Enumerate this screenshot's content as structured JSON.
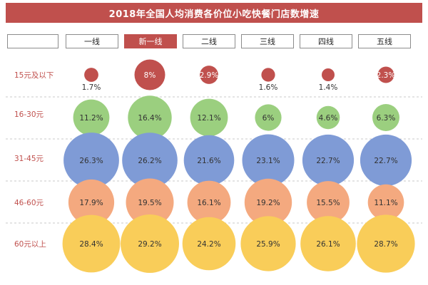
{
  "title": "2018年全国人均消费各价位小吃快餐门店数增速",
  "chart_data": {
    "type": "bubble",
    "columns": [
      "一线",
      "新一线",
      "二线",
      "三线",
      "四线",
      "五线"
    ],
    "active_column": "新一线",
    "rows": [
      "15元及以下",
      "16-30元",
      "31-45元",
      "46-60元",
      "60元以上"
    ],
    "row_colors": [
      "#c0504d",
      "#9bcf7f",
      "#7f9bd6",
      "#f4a97f",
      "#f9cd59"
    ],
    "values": [
      [
        1.7,
        8,
        2.9,
        1.6,
        1.4,
        2.3
      ],
      [
        11.2,
        16.4,
        12.1,
        6,
        4.6,
        6.3
      ],
      [
        26.3,
        26.2,
        21.6,
        23.1,
        22.7,
        22.7
      ],
      [
        17.9,
        19.5,
        16.1,
        19.2,
        15.5,
        11.1
      ],
      [
        28.4,
        29.2,
        24.2,
        25.9,
        26.1,
        28.7
      ]
    ],
    "labels": [
      [
        "1.7%",
        "8%",
        "2.9%",
        "1.6%",
        "1.4%",
        "2.3%"
      ],
      [
        "11.2%",
        "16.4%",
        "12.1%",
        "6%",
        "4.6%",
        "6.3%"
      ],
      [
        "26.3%",
        "26.2%",
        "21.6%",
        "23.1%",
        "22.7%",
        "22.7%"
      ],
      [
        "17.9%",
        "19.5%",
        "16.1%",
        "19.2%",
        "15.5%",
        "11.1%"
      ],
      [
        "28.4%",
        "29.2%",
        "24.2%",
        "25.9%",
        "26.1%",
        "28.7%"
      ]
    ]
  }
}
